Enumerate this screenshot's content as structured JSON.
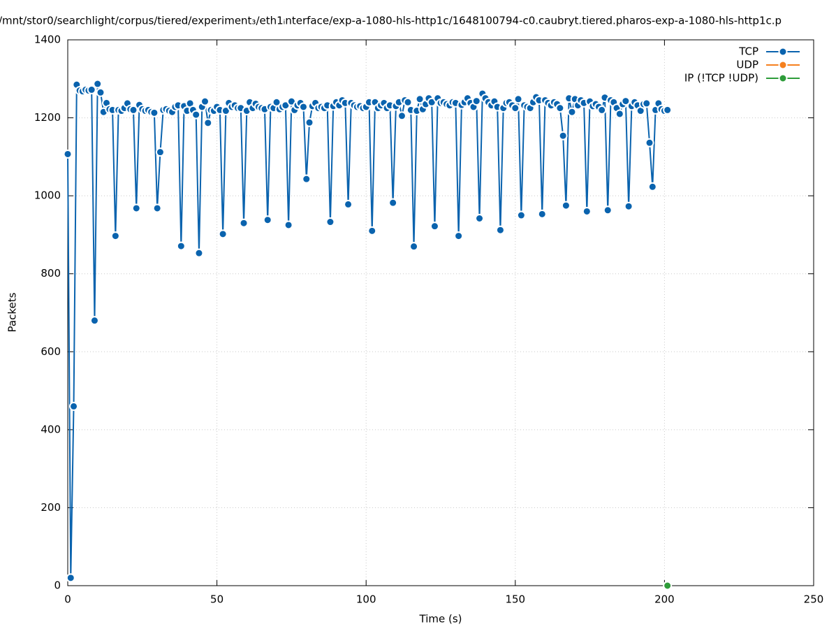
{
  "chart_data": {
    "type": "line",
    "title": "/mnt/stor0/searchlight/corpus/tiered/experiment₃/eth1ᵢnterface/exp-a-1080-hls-http1c/1648100794-c0.caubryt.tiered.pharos-exp-a-1080-hls-http1c.p",
    "x_label": "Time (s)",
    "y_label": "Packets",
    "xlim": [
      0,
      250
    ],
    "xticks": [
      0,
      50,
      100,
      150,
      200,
      250
    ],
    "ylim": [
      0,
      1400
    ],
    "yticks": [
      0,
      200,
      400,
      600,
      800,
      1000,
      1200,
      1400
    ],
    "grid": true,
    "legend": "top-right",
    "series": [
      {
        "name": "TCP",
        "color": "#0a63ae",
        "x": [
          0,
          1,
          2,
          3,
          4,
          5,
          6,
          7,
          8,
          9,
          10,
          11,
          12,
          13,
          14,
          15,
          16,
          17,
          18,
          19,
          20,
          21,
          22,
          23,
          24,
          25,
          26,
          27,
          28,
          29,
          30,
          31,
          32,
          33,
          34,
          35,
          36,
          37,
          38,
          39,
          40,
          41,
          42,
          43,
          44,
          45,
          46,
          47,
          48,
          49,
          50,
          51,
          52,
          53,
          54,
          55,
          56,
          57,
          58,
          59,
          60,
          61,
          62,
          63,
          64,
          65,
          66,
          67,
          68,
          69,
          70,
          71,
          72,
          73,
          74,
          75,
          76,
          77,
          78,
          79,
          80,
          81,
          82,
          83,
          84,
          85,
          86,
          87,
          88,
          89,
          90,
          91,
          92,
          93,
          94,
          95,
          96,
          97,
          98,
          99,
          100,
          101,
          102,
          103,
          104,
          105,
          106,
          107,
          108,
          109,
          110,
          111,
          112,
          113,
          114,
          115,
          116,
          117,
          118,
          119,
          120,
          121,
          122,
          123,
          124,
          125,
          126,
          127,
          128,
          129,
          130,
          131,
          132,
          133,
          134,
          135,
          136,
          137,
          138,
          139,
          140,
          141,
          142,
          143,
          144,
          145,
          146,
          147,
          148,
          149,
          150,
          151,
          152,
          153,
          154,
          155,
          156,
          157,
          158,
          159,
          160,
          161,
          162,
          163,
          164,
          165,
          166,
          167,
          168,
          169,
          170,
          171,
          172,
          173,
          174,
          175,
          176,
          177,
          178,
          179,
          180,
          181,
          182,
          183,
          184,
          185,
          186,
          187,
          188,
          189,
          190,
          191,
          192,
          193,
          194,
          195,
          196,
          197,
          198,
          199,
          200,
          201
        ],
        "values": [
          1107,
          20,
          460,
          1285,
          1270,
          1268,
          1272,
          1270,
          1272,
          680,
          1287,
          1265,
          1215,
          1238,
          1222,
          1220,
          897,
          1220,
          1218,
          1225,
          1237,
          1222,
          1220,
          968,
          1233,
          1222,
          1218,
          1220,
          1215,
          1213,
          968,
          1112,
          1220,
          1222,
          1218,
          1215,
          1228,
          1232,
          871,
          1230,
          1218,
          1237,
          1220,
          1208,
          853,
          1228,
          1242,
          1187,
          1220,
          1218,
          1228,
          1220,
          902,
          1218,
          1238,
          1228,
          1232,
          1225,
          1225,
          930,
          1218,
          1240,
          1225,
          1236,
          1228,
          1225,
          1222,
          938,
          1228,
          1225,
          1240,
          1222,
          1228,
          1232,
          925,
          1242,
          1220,
          1232,
          1238,
          1228,
          1043,
          1188,
          1230,
          1238,
          1225,
          1228,
          1225,
          1232,
          933,
          1230,
          1240,
          1232,
          1245,
          1238,
          978,
          1238,
          1232,
          1228,
          1230,
          1225,
          1228,
          1240,
          910,
          1240,
          1225,
          1232,
          1238,
          1225,
          1232,
          982,
          1230,
          1240,
          1205,
          1245,
          1240,
          1220,
          870,
          1218,
          1248,
          1222,
          1235,
          1250,
          1240,
          922,
          1250,
          1238,
          1240,
          1235,
          1232,
          1240,
          1238,
          897,
          1233,
          1240,
          1250,
          1238,
          1228,
          1243,
          942,
          1262,
          1250,
          1240,
          1232,
          1242,
          1228,
          912,
          1225,
          1238,
          1240,
          1232,
          1225,
          1248,
          950,
          1232,
          1228,
          1225,
          1240,
          1253,
          1245,
          953,
          1245,
          1238,
          1232,
          1240,
          1235,
          1225,
          1154,
          975,
          1250,
          1215,
          1248,
          1232,
          1245,
          1238,
          960,
          1242,
          1230,
          1235,
          1228,
          1220,
          1252,
          963,
          1245,
          1240,
          1225,
          1210,
          1235,
          1243,
          973,
          1230,
          1240,
          1232,
          1218,
          1235,
          1237,
          1136,
          1023,
          1220,
          1237,
          1222,
          1218,
          1220
        ]
      },
      {
        "name": "UDP",
        "color": "#f5801e",
        "x": [],
        "values": []
      },
      {
        "name": "IP (!TCP  !UDP)",
        "color": "#2e9c3a",
        "x": [
          201
        ],
        "values": [
          0
        ]
      }
    ]
  }
}
